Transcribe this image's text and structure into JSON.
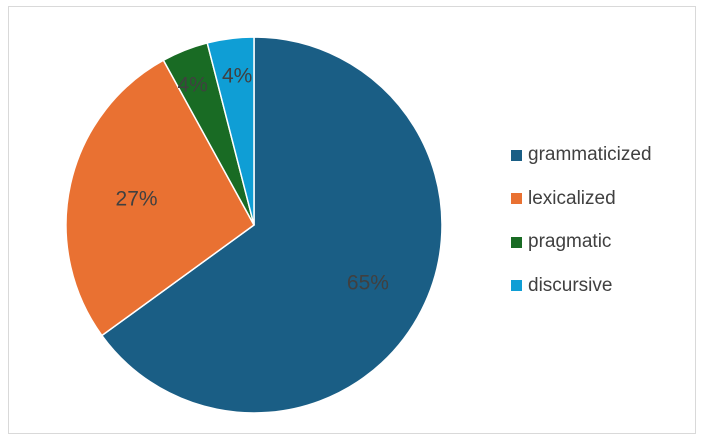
{
  "chart_data": {
    "type": "pie",
    "title": "",
    "categories": [
      "grammaticized",
      "lexicalized",
      "pragmatic",
      "discursive"
    ],
    "values": [
      65,
      27,
      4,
      4
    ],
    "data_labels": [
      "65%",
      "27%",
      "4%",
      "4%"
    ],
    "colors": [
      "#1a5e85",
      "#e97132",
      "#196b24",
      "#0f9ed5"
    ],
    "legend_position": "right",
    "start_angle_deg": 0,
    "direction": "clockwise"
  }
}
